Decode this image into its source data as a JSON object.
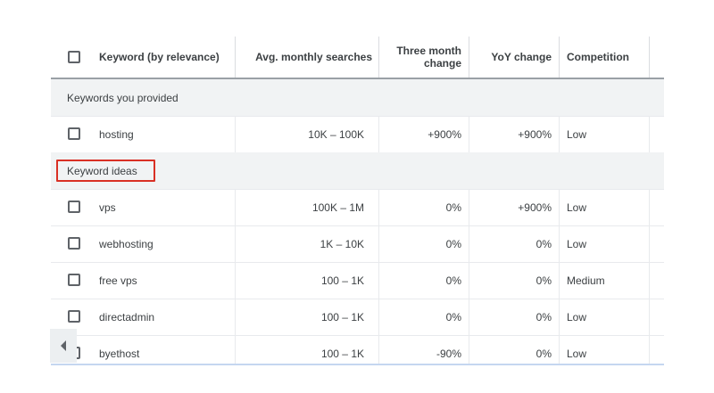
{
  "columns": {
    "keyword": "Keyword (by relevance)",
    "searches": "Avg. monthly searches",
    "three_month_line1": "Three month",
    "three_month_line2": "change",
    "yoy": "YoY change",
    "competition": "Competition"
  },
  "groups": {
    "provided": "Keywords you provided",
    "ideas": "Keyword ideas"
  },
  "provided_rows": [
    {
      "keyword": "hosting",
      "searches": "10K – 100K",
      "three_month": "+900%",
      "yoy": "+900%",
      "competition": "Low"
    }
  ],
  "idea_rows": [
    {
      "keyword": "vps",
      "searches": "100K – 1M",
      "three_month": "0%",
      "yoy": "+900%",
      "competition": "Low"
    },
    {
      "keyword": "webhosting",
      "searches": "1K – 10K",
      "three_month": "0%",
      "yoy": "0%",
      "competition": "Low"
    },
    {
      "keyword": "free vps",
      "searches": "100 – 1K",
      "three_month": "0%",
      "yoy": "0%",
      "competition": "Medium"
    },
    {
      "keyword": "directadmin",
      "searches": "100 – 1K",
      "three_month": "0%",
      "yoy": "0%",
      "competition": "Low"
    },
    {
      "keyword": "byethost",
      "searches": "100 – 1K",
      "three_month": "-90%",
      "yoy": "0%",
      "competition": "Low"
    }
  ],
  "colors": {
    "highlight": "#d93025",
    "group_bg": "#f1f3f4"
  },
  "icons": {
    "scroll_left": "chevron-left-icon"
  }
}
